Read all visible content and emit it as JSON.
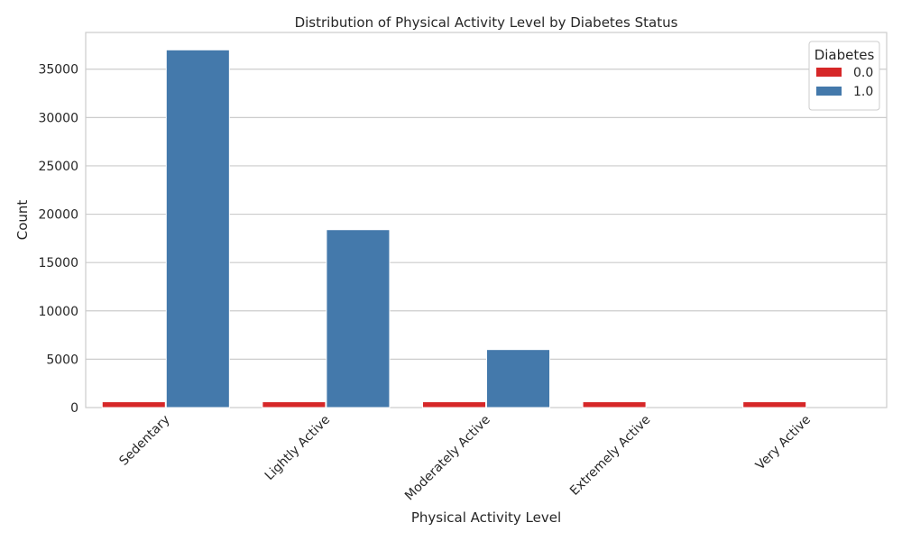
{
  "chart_data": {
    "type": "bar",
    "title": "Distribution of Physical Activity Level by Diabetes Status",
    "xlabel": "Physical Activity Level",
    "ylabel": "Count",
    "categories": [
      "Sedentary",
      "Lightly Active",
      "Moderately Active",
      "Extremely Active",
      "Very Active"
    ],
    "series": [
      {
        "name": "0.0",
        "color": "#d62728",
        "values": [
          600,
          600,
          600,
          600,
          600
        ]
      },
      {
        "name": "1.0",
        "color": "#4479ab",
        "values": [
          37000,
          18400,
          6000,
          0,
          0
        ]
      }
    ],
    "ylim": [
      0,
      38800
    ],
    "yticks": [
      0,
      5000,
      10000,
      15000,
      20000,
      25000,
      30000,
      35000
    ],
    "ytick_labels": [
      "0",
      "5000",
      "10000",
      "15000",
      "20000",
      "25000",
      "30000",
      "35000"
    ],
    "legend": {
      "title": "Diabetes",
      "position": "top-right"
    },
    "grid": true,
    "x_tick_rotation": 45
  }
}
